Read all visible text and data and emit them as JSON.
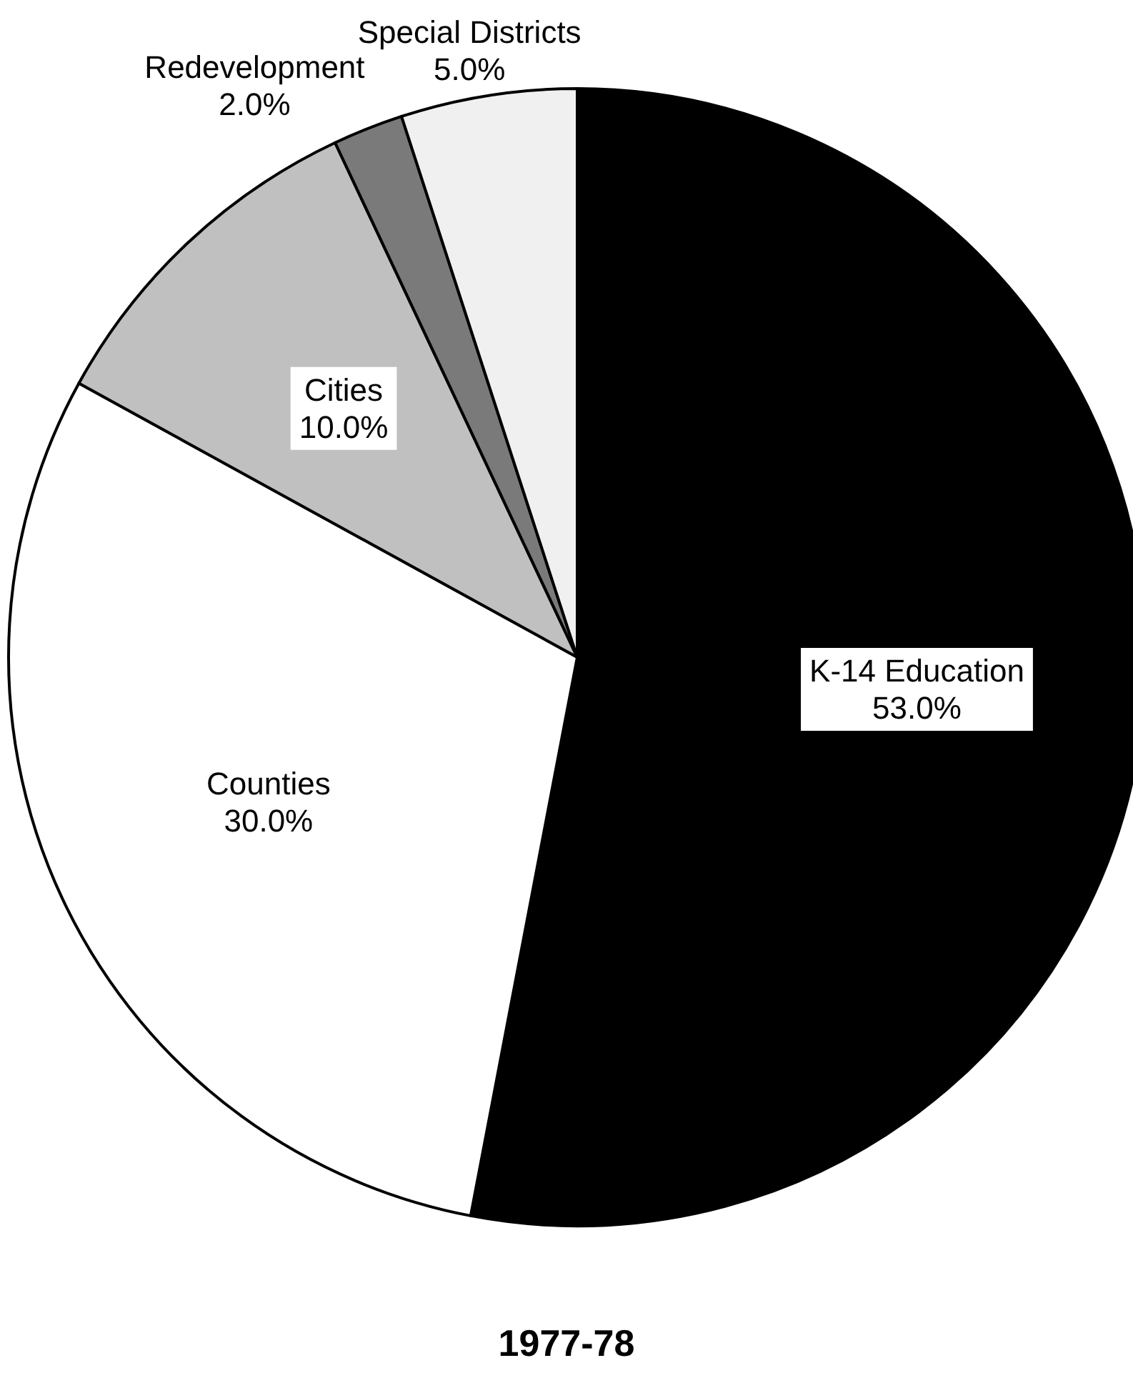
{
  "chart_data": {
    "type": "pie",
    "title": "1977-78",
    "categories": [
      "K-14 Education",
      "Counties",
      "Cities",
      "Redevelopment",
      "Special Districts"
    ],
    "values": [
      53,
      30,
      10,
      2,
      5
    ],
    "value_labels": [
      "53.0%",
      "30.0%",
      "10.0%",
      "2.0%",
      "5.0%"
    ],
    "colors": [
      "#000000",
      "#ffffff",
      "#c0c0c0",
      "#7a7a7a",
      "#f0f0f0"
    ],
    "legend": false
  }
}
